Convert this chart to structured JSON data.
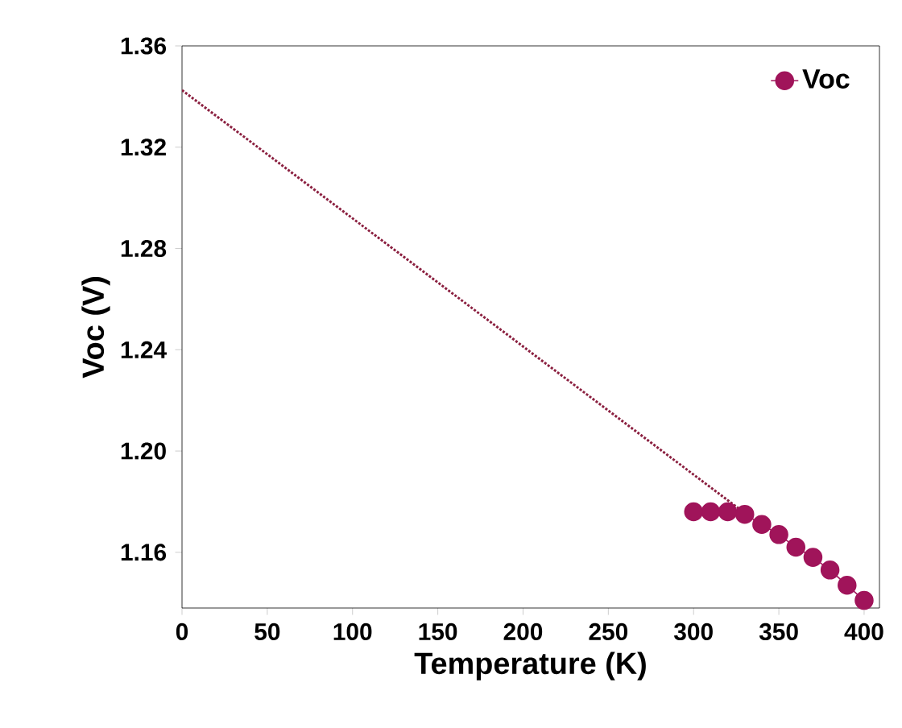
{
  "chart_data": {
    "type": "line",
    "xlabel": "Temperature (K)",
    "ylabel": "Voc (V)",
    "xlim": [
      0,
      409
    ],
    "ylim": [
      1.138,
      1.36
    ],
    "xticks": [
      0,
      50,
      100,
      150,
      200,
      250,
      300,
      350,
      400
    ],
    "yticks": [
      {
        "value": 1.16,
        "label": "1.16"
      },
      {
        "value": 1.2,
        "label": "1.20"
      },
      {
        "value": 1.24,
        "label": "1.24"
      },
      {
        "value": 1.28,
        "label": "1.28"
      },
      {
        "value": 1.32,
        "label": "1.32"
      },
      {
        "value": 1.36,
        "label": "1.36"
      }
    ],
    "grid": false,
    "legend": "top right",
    "series": [
      {
        "name": "Voc",
        "color": "#a0145a",
        "marker": "circle",
        "x": [
          300,
          310,
          320,
          330,
          340,
          350,
          360,
          370,
          380,
          390,
          400
        ],
        "values": [
          1.176,
          1.176,
          1.176,
          1.175,
          1.171,
          1.167,
          1.162,
          1.158,
          1.153,
          1.147,
          1.141
        ]
      },
      {
        "color": "#8b2040",
        "marker": "none",
        "line_style": "dotted",
        "x": [
          0,
          330
        ],
        "values": [
          1.3425,
          1.1755
        ]
      }
    ]
  }
}
